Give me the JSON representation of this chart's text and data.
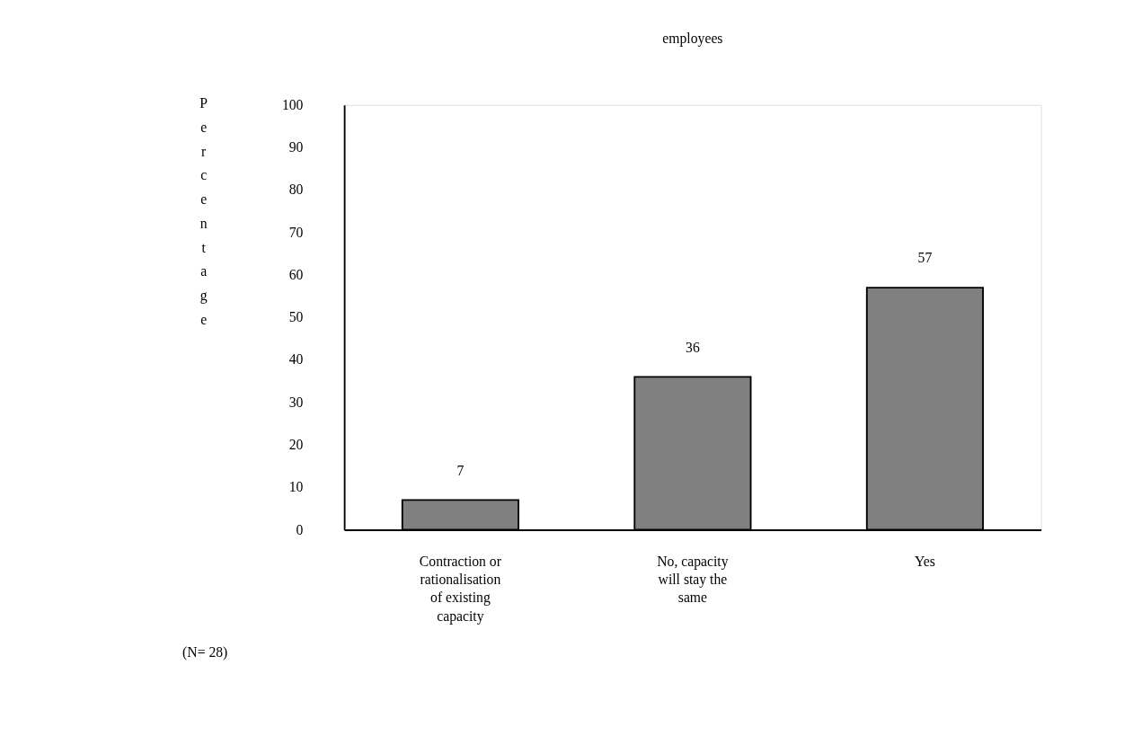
{
  "chart_data": {
    "type": "bar",
    "title": "employees",
    "ylabel": "Percentage",
    "categories": [
      "Contraction or rationalisation of existing capacity",
      "No, capacity will stay the same",
      "Yes"
    ],
    "values": [
      7,
      36,
      57
    ],
    "color": "#808080",
    "ylim": [
      0,
      100
    ],
    "yticks": [
      0,
      10,
      20,
      30,
      40,
      50,
      60,
      70,
      80,
      90,
      100
    ],
    "grid": false,
    "data_labels": true,
    "annotations": [
      "(N= 28)"
    ]
  }
}
